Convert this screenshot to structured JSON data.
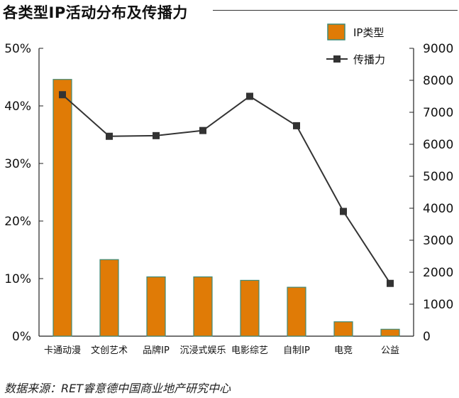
{
  "title": "各类型IP活动分布及传播力",
  "source": "数据来源：RET睿意德中国商业地产研究中心",
  "chart_data": {
    "type": "bar",
    "categories": [
      "卡通动漫",
      "文创艺术",
      "品牌IP",
      "沉浸式娱乐",
      "电影综艺",
      "自制IP",
      "电竞",
      "公益"
    ],
    "series": [
      {
        "name": "IP类型",
        "type": "bar",
        "axis": "left",
        "values": [
          44.6,
          13.3,
          10.3,
          10.3,
          9.7,
          8.5,
          2.5,
          1.2
        ]
      },
      {
        "name": "传播力",
        "type": "line",
        "axis": "right",
        "values": [
          7550,
          6250,
          6270,
          6430,
          7500,
          6580,
          3900,
          1650
        ]
      }
    ],
    "y_left": {
      "ticks": [
        "0%",
        "10%",
        "20%",
        "30%",
        "40%",
        "50%"
      ],
      "ylim": [
        0,
        50
      ]
    },
    "y_right": {
      "ticks": [
        "0",
        "1000",
        "2000",
        "3000",
        "4000",
        "5000",
        "6000",
        "7000",
        "8000",
        "9000"
      ],
      "ylim": [
        0,
        9000
      ]
    },
    "legend": {
      "position": "top-right"
    },
    "grid": false,
    "colors": {
      "bar": "#e07b06",
      "bar_border": "#3f8b78",
      "line": "#333333",
      "marker": "#333333"
    }
  }
}
